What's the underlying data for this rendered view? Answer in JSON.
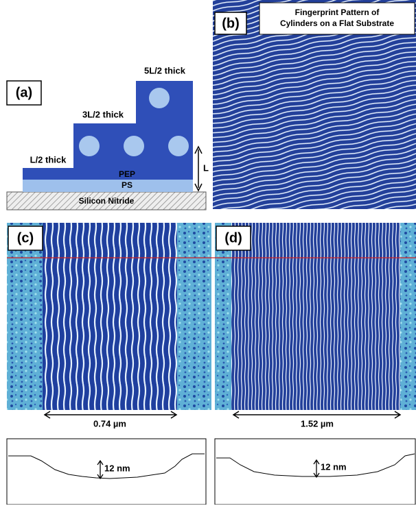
{
  "panel_a": {
    "label": "(a)",
    "layers": {
      "top": "5L/2 thick",
      "middle": "3L/2 thick",
      "bottom": "L/2 thick"
    },
    "materials": {
      "pep": "PEP",
      "ps": "PS",
      "substrate": "Silicon Nitride"
    },
    "period": "L"
  },
  "panel_b": {
    "label": "(b)",
    "title": [
      "Fingerprint Pattern of",
      "Cylinders on a Flat Substrate"
    ]
  },
  "panel_c": {
    "label": "(c)",
    "width": "0.74 µm",
    "depth": "12 nm"
  },
  "panel_d": {
    "label": "(d)",
    "width": "1.52 µm",
    "depth": "12 nm"
  }
}
